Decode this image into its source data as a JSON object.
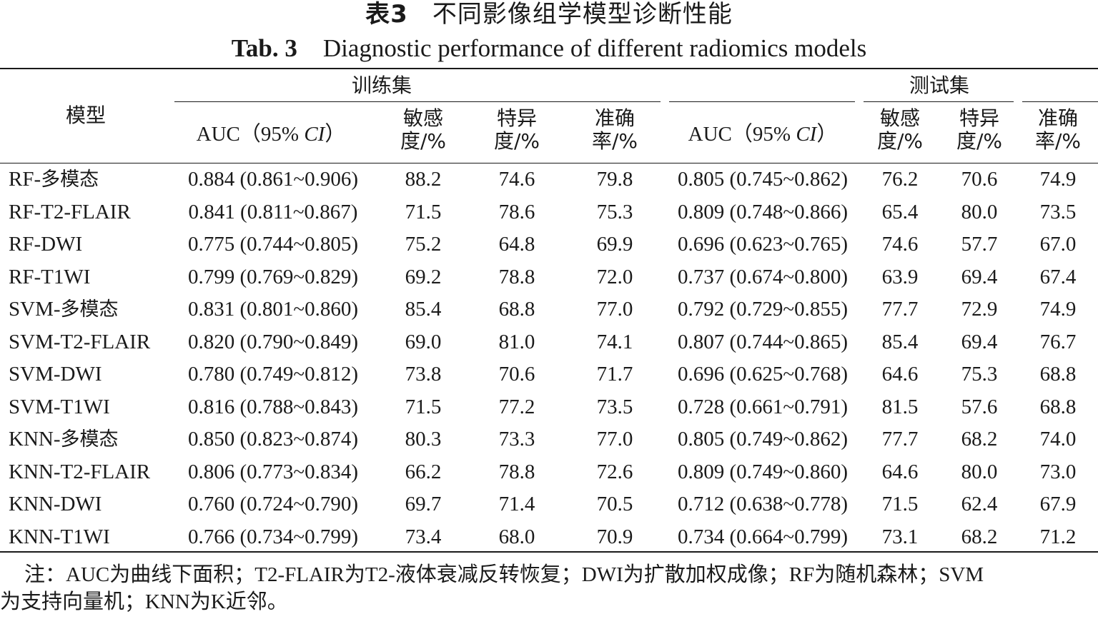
{
  "title": {
    "cn_label": "表3",
    "cn_text": "不同影像组学模型诊断性能",
    "en_label": "Tab. 3",
    "en_text": "Diagnostic performance of different radiomics models"
  },
  "header": {
    "model": "模型",
    "train_group": "训练集",
    "test_group": "测试集",
    "auc_prefix": "AUC（95% ",
    "auc_ci": "CI",
    "auc_suffix": "）",
    "sens_1": "敏感",
    "sens_2": "度/%",
    "spec_1": "特异",
    "spec_2": "度/%",
    "acc_1": "准确",
    "acc_2": "率/%"
  },
  "rows": [
    {
      "model_en": "RF-",
      "model_cn": "多模态",
      "train_auc": "0.884 (0.861~0.906)",
      "train_sens": "88.2",
      "train_spec": "74.6",
      "train_acc": "79.8",
      "test_auc": "0.805 (0.745~0.862)",
      "test_sens": "76.2",
      "test_spec": "70.6",
      "test_acc": "74.9"
    },
    {
      "model_en": "RF-T2-FLAIR",
      "model_cn": "",
      "train_auc": "0.841 (0.811~0.867)",
      "train_sens": "71.5",
      "train_spec": "78.6",
      "train_acc": "75.3",
      "test_auc": "0.809 (0.748~0.866)",
      "test_sens": "65.4",
      "test_spec": "80.0",
      "test_acc": "73.5"
    },
    {
      "model_en": "RF-DWI",
      "model_cn": "",
      "train_auc": "0.775 (0.744~0.805)",
      "train_sens": "75.2",
      "train_spec": "64.8",
      "train_acc": "69.9",
      "test_auc": "0.696 (0.623~0.765)",
      "test_sens": "74.6",
      "test_spec": "57.7",
      "test_acc": "67.0"
    },
    {
      "model_en": "RF-T1WI",
      "model_cn": "",
      "train_auc": "0.799 (0.769~0.829)",
      "train_sens": "69.2",
      "train_spec": "78.8",
      "train_acc": "72.0",
      "test_auc": "0.737 (0.674~0.800)",
      "test_sens": "63.9",
      "test_spec": "69.4",
      "test_acc": "67.4"
    },
    {
      "model_en": "SVM-",
      "model_cn": "多模态",
      "train_auc": "0.831 (0.801~0.860)",
      "train_sens": "85.4",
      "train_spec": "68.8",
      "train_acc": "77.0",
      "test_auc": "0.792 (0.729~0.855)",
      "test_sens": "77.7",
      "test_spec": "72.9",
      "test_acc": "74.9"
    },
    {
      "model_en": "SVM-T2-FLAIR",
      "model_cn": "",
      "train_auc": "0.820 (0.790~0.849)",
      "train_sens": "69.0",
      "train_spec": "81.0",
      "train_acc": "74.1",
      "test_auc": "0.807 (0.744~0.865)",
      "test_sens": "85.4",
      "test_spec": "69.4",
      "test_acc": "76.7"
    },
    {
      "model_en": "SVM-DWI",
      "model_cn": "",
      "train_auc": "0.780 (0.749~0.812)",
      "train_sens": "73.8",
      "train_spec": "70.6",
      "train_acc": "71.7",
      "test_auc": "0.696 (0.625~0.768)",
      "test_sens": "64.6",
      "test_spec": "75.3",
      "test_acc": "68.8"
    },
    {
      "model_en": "SVM-T1WI",
      "model_cn": "",
      "train_auc": "0.816 (0.788~0.843)",
      "train_sens": "71.5",
      "train_spec": "77.2",
      "train_acc": "73.5",
      "test_auc": "0.728 (0.661~0.791)",
      "test_sens": "81.5",
      "test_spec": "57.6",
      "test_acc": "68.8"
    },
    {
      "model_en": "KNN-",
      "model_cn": "多模态",
      "train_auc": "0.850 (0.823~0.874)",
      "train_sens": "80.3",
      "train_spec": "73.3",
      "train_acc": "77.0",
      "test_auc": "0.805 (0.749~0.862)",
      "test_sens": "77.7",
      "test_spec": "68.2",
      "test_acc": "74.0"
    },
    {
      "model_en": "KNN-T2-FLAIR",
      "model_cn": "",
      "train_auc": "0.806 (0.773~0.834)",
      "train_sens": "66.2",
      "train_spec": "78.8",
      "train_acc": "72.6",
      "test_auc": "0.809 (0.749~0.860)",
      "test_sens": "64.6",
      "test_spec": "80.0",
      "test_acc": "73.0"
    },
    {
      "model_en": "KNN-DWI",
      "model_cn": "",
      "train_auc": "0.760 (0.724~0.790)",
      "train_sens": "69.7",
      "train_spec": "71.4",
      "train_acc": "70.5",
      "test_auc": "0.712 (0.638~0.778)",
      "test_sens": "71.5",
      "test_spec": "62.4",
      "test_acc": "67.9"
    },
    {
      "model_en": "KNN-T1WI",
      "model_cn": "",
      "train_auc": "0.766 (0.734~0.799)",
      "train_sens": "73.4",
      "train_spec": "68.0",
      "train_acc": "70.9",
      "test_auc": "0.734 (0.664~0.799)",
      "test_sens": "73.1",
      "test_spec": "68.2",
      "test_acc": "71.2"
    }
  ],
  "note": {
    "line1": "注：AUC为曲线下面积；T2-FLAIR为T2-液体衰减反转恢复；DWI为扩散加权成像；RF为随机森林；SVM",
    "line2": "为支持向量机；KNN为K近邻。"
  }
}
